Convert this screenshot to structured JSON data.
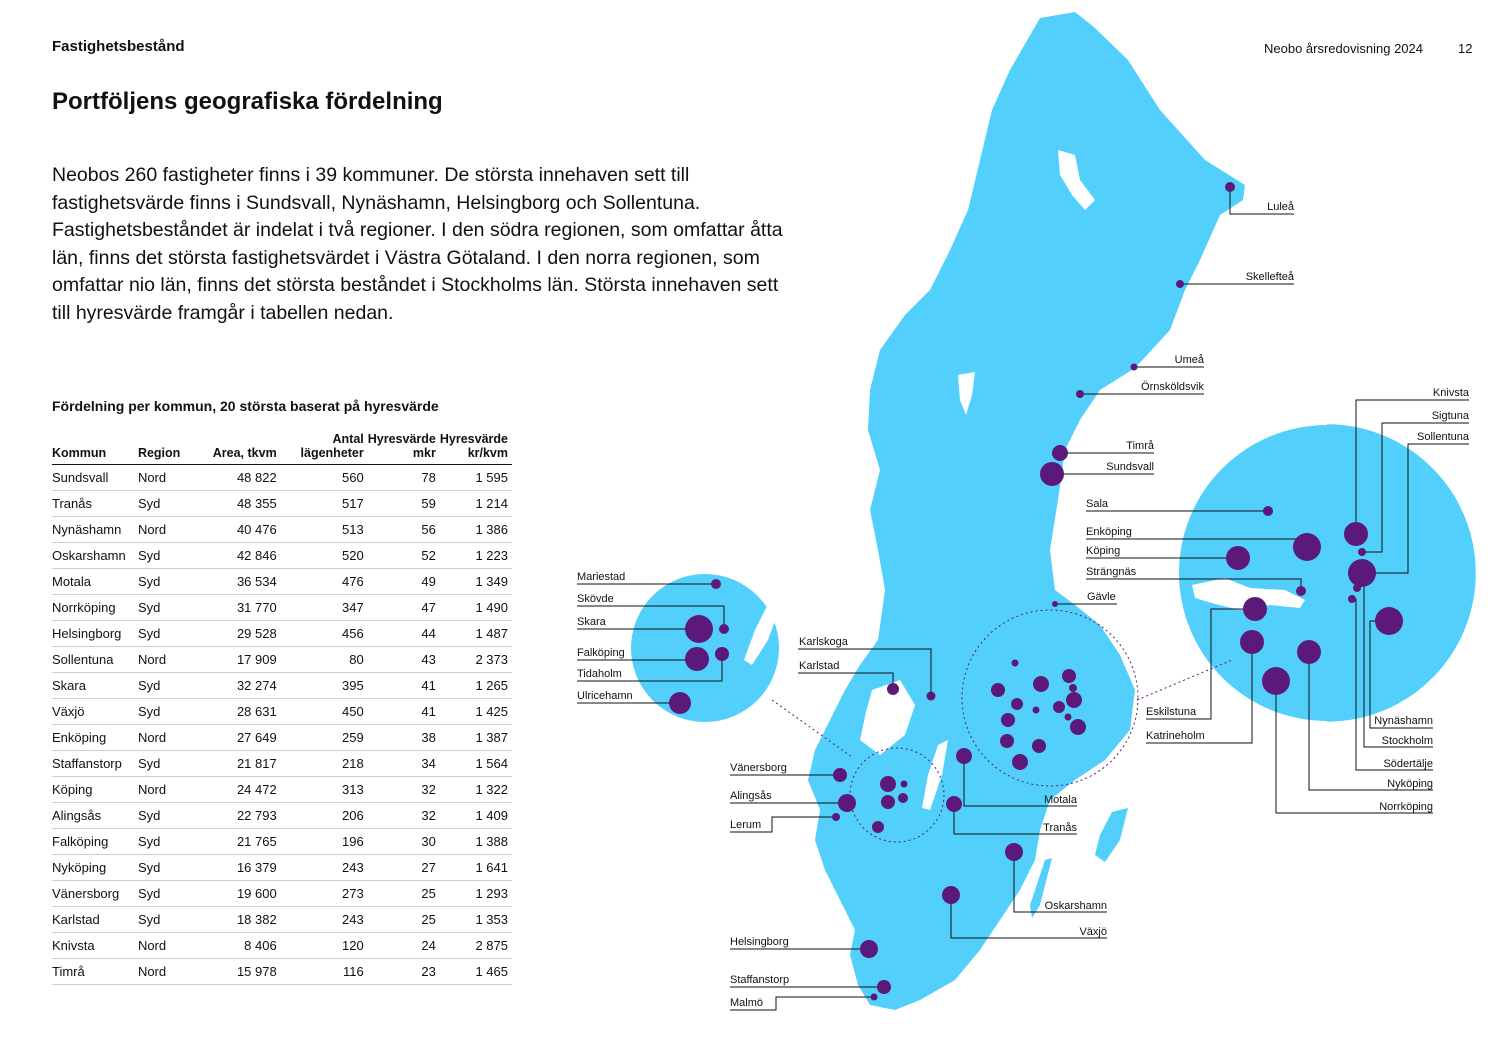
{
  "header": {
    "section": "Fastighetsbestånd",
    "report": "Neobo årsredovisning 2024",
    "page": "12"
  },
  "title": "Portföljens geografiska fördelning",
  "intro": "Neobos 260 fastigheter finns i 39 kommuner. De största innehaven sett till fastighetsvärde finns i Sundsvall, Nynäshamn, Helsingborg och Sollentuna. Fastighetsbeståndet är indelat i två regioner. I den södra regionen, som omfattar åtta län, finns det största fastighetsvärdet i Västra Götaland. I den norra regionen, som omfattar nio län, finns det största beståndet i Stockholms län. Största innehaven sett till hyresvärde framgår i tabellen nedan.",
  "table": {
    "title": "Fördelning per kommun, 20 största baserat på hyresvärde",
    "headers": [
      "Kommun",
      "Region",
      "Area, tkvm",
      "Antal lägenheter",
      "Hyresvärde mkr",
      "Hyresvärde kr/kvm"
    ],
    "rows": [
      [
        "Sundsvall",
        "Nord",
        "48 822",
        "560",
        "78",
        "1 595"
      ],
      [
        "Tranås",
        "Syd",
        "48 355",
        "517",
        "59",
        "1 214"
      ],
      [
        "Nynäshamn",
        "Nord",
        "40 476",
        "513",
        "56",
        "1 386"
      ],
      [
        "Oskarshamn",
        "Syd",
        "42 846",
        "520",
        "52",
        "1 223"
      ],
      [
        "Motala",
        "Syd",
        "36 534",
        "476",
        "49",
        "1 349"
      ],
      [
        "Norrköping",
        "Syd",
        "31 770",
        "347",
        "47",
        "1 490"
      ],
      [
        "Helsingborg",
        "Syd",
        "29 528",
        "456",
        "44",
        "1 487"
      ],
      [
        "Sollentuna",
        "Nord",
        "17 909",
        "80",
        "43",
        "2 373"
      ],
      [
        "Skara",
        "Syd",
        "32 274",
        "395",
        "41",
        "1 265"
      ],
      [
        "Växjö",
        "Syd",
        "28 631",
        "450",
        "41",
        "1 425"
      ],
      [
        "Enköping",
        "Nord",
        "27 649",
        "259",
        "38",
        "1 387"
      ],
      [
        "Staffanstorp",
        "Syd",
        "21 817",
        "218",
        "34",
        "1 564"
      ],
      [
        "Köping",
        "Nord",
        "24 472",
        "313",
        "32",
        "1 322"
      ],
      [
        "Alingsås",
        "Syd",
        "22 793",
        "206",
        "32",
        "1 409"
      ],
      [
        "Falköping",
        "Syd",
        "21 765",
        "196",
        "30",
        "1 388"
      ],
      [
        "Nyköping",
        "Syd",
        "16 379",
        "243",
        "27",
        "1 641"
      ],
      [
        "Vänersborg",
        "Syd",
        "19 600",
        "273",
        "25",
        "1 293"
      ],
      [
        "Karlstad",
        "Syd",
        "18 382",
        "243",
        "25",
        "1 353"
      ],
      [
        "Knivsta",
        "Nord",
        "8 406",
        "120",
        "24",
        "2 875"
      ],
      [
        "Timrå",
        "Nord",
        "15 978",
        "116",
        "23",
        "1 465"
      ]
    ]
  },
  "map": {
    "colors": {
      "land": "#52d0fb",
      "lake": "#ffffff",
      "dot": "#5b1a7a",
      "line": "#111111"
    },
    "labels": {
      "lulea": "Luleå",
      "skelleftea": "Skellefteå",
      "umea": "Umeå",
      "ornskoldsvik": "Örnsköldsvik",
      "timra": "Timrå",
      "sundsvall": "Sundsvall",
      "gavle": "Gävle",
      "karlskoga": "Karlskoga",
      "karlstad": "Karlstad",
      "vanersborg": "Vänersborg",
      "alingsas": "Alingsås",
      "lerum": "Lerum",
      "motala": "Motala",
      "tranas": "Tranås",
      "oskarshamn": "Oskarshamn",
      "vaxjo": "Växjö",
      "helsingborg": "Helsingborg",
      "staffanstorp": "Staffanstorp",
      "malmo": "Malmö",
      "mariestad": "Mariestad",
      "skovde": "Skövde",
      "skara": "Skara",
      "falkoping": "Falköping",
      "tidaholm": "Tidaholm",
      "ulricehamn": "Ulricehamn",
      "sala": "Sala",
      "enkoping": "Enköping",
      "koping": "Köping",
      "strangnas": "Strängnäs",
      "eskilstuna": "Eskilstuna",
      "katrineholm": "Katrineholm",
      "knivsta": "Knivsta",
      "sigtuna": "Sigtuna",
      "sollentuna": "Sollentuna",
      "nynashamn": "Nynäshamn",
      "stockholm": "Stockholm",
      "sodertalje": "Södertälje",
      "nykoping": "Nyköping",
      "norrkoping": "Norrköping"
    }
  }
}
